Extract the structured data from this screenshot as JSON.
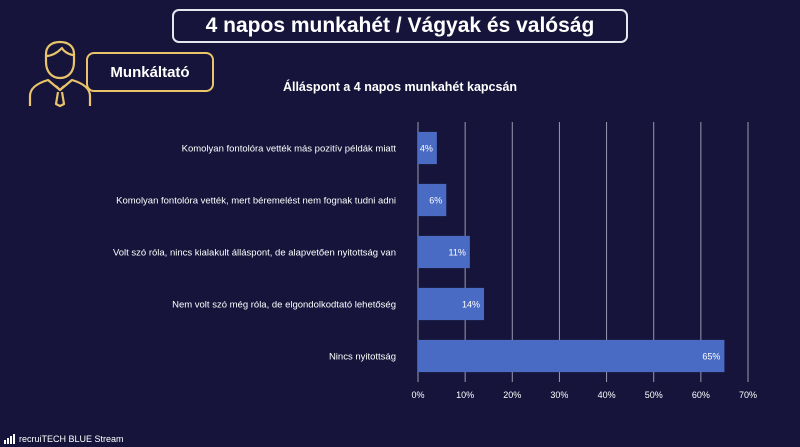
{
  "slide": {
    "title": "4 napos munkahét / Vágyak és valóság",
    "badge_label": "Munkáltató",
    "badge_icon": "person-icon"
  },
  "footer": {
    "text": "recruiTECH BLUE Stream",
    "icon": "signal-bars-icon"
  },
  "colors": {
    "background": "#16143a",
    "bar": "#4a6bc4",
    "grid": "#9a9ab0",
    "badge_border": "#e9c46a"
  },
  "chart_data": {
    "type": "bar",
    "orientation": "horizontal",
    "title": "Álláspont a 4 napos munkahét kapcsán",
    "categories": [
      "Komolyan fontolóra vették más pozitív példák miatt",
      "Komolyan fontolóra vették, mert béremelést nem fognak tudni adni",
      "Volt szó róla, nincs kialakult álláspont, de alapvetően nyitottság van",
      "Nem volt szó még róla, de elgondolkodtató lehetőség",
      "Nincs nyitottság"
    ],
    "values": [
      4,
      6,
      11,
      14,
      65
    ],
    "data_labels": [
      "4%",
      "6%",
      "11%",
      "14%",
      "65%"
    ],
    "xlim": [
      0,
      70
    ],
    "xticks": [
      "0%",
      "10%",
      "20%",
      "30%",
      "40%",
      "50%",
      "60%",
      "70%"
    ],
    "grid": true,
    "legend": "none"
  }
}
